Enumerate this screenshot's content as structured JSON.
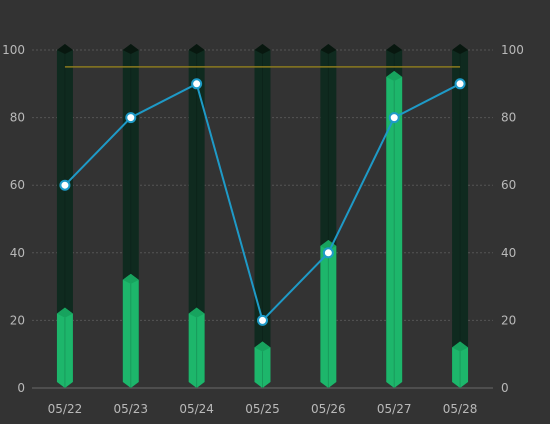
{
  "chart_data": {
    "type": "bar",
    "categories": [
      "05/22",
      "05/23",
      "05/24",
      "05/25",
      "05/26",
      "05/27",
      "05/28"
    ],
    "background_bar_value": 100,
    "series": [
      {
        "type": "bar",
        "values": [
          22,
          32,
          22,
          12,
          42,
          92,
          12
        ],
        "color": "#1db66b"
      },
      {
        "type": "line",
        "values": [
          60,
          80,
          90,
          20,
          40,
          80,
          90
        ],
        "color": "#1e9ac7"
      }
    ],
    "mark_line": {
      "value": 95,
      "color": "#8a7a1f"
    },
    "y_axis_left": {
      "min": 0,
      "max": 100,
      "ticks": [
        0,
        20,
        40,
        60,
        80,
        100
      ]
    },
    "y_axis_right": {
      "min": 0,
      "max": 100,
      "ticks": [
        0,
        20,
        40,
        60,
        80,
        100
      ]
    },
    "grid": true,
    "colors": {
      "background": "#333333",
      "background_bar": "#0f2a1f",
      "background_bar_cap": "#08170f",
      "grid": "#555555",
      "axis_text": "#b9b9b9"
    }
  }
}
